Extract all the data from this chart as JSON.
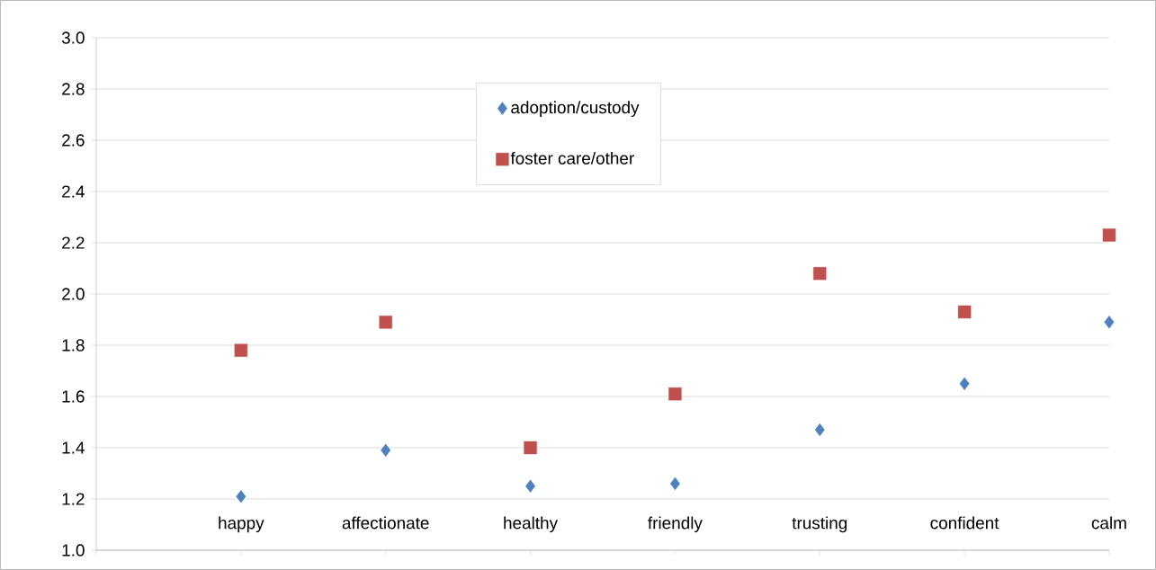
{
  "chart_data": {
    "type": "scatter",
    "categories": [
      null,
      "happy",
      "affectionate",
      "healthy",
      "friendly",
      "trusting",
      "confident",
      "calm"
    ],
    "series": [
      {
        "name": "adoption/custody",
        "color": "#4f81bd",
        "marker": "diamond",
        "values": [
          null,
          1.21,
          1.39,
          1.25,
          1.26,
          1.47,
          1.65,
          1.89
        ]
      },
      {
        "name": "foster care/other",
        "color": "#c0504d",
        "marker": "square",
        "values": [
          null,
          1.78,
          1.89,
          1.4,
          1.61,
          2.08,
          1.93,
          2.23
        ]
      }
    ],
    "ylim": [
      1.0,
      3.0
    ],
    "yticks": [
      {
        "value": 1.0,
        "label": "1.0"
      },
      1.2,
      1.4,
      1.6,
      1.8,
      {
        "value": 2.0,
        "label": "2.0"
      },
      2.2,
      2.4,
      2.6,
      2.8,
      {
        "value": 3.0,
        "label": "3.0"
      }
    ],
    "grid": "y",
    "legend": "top"
  }
}
